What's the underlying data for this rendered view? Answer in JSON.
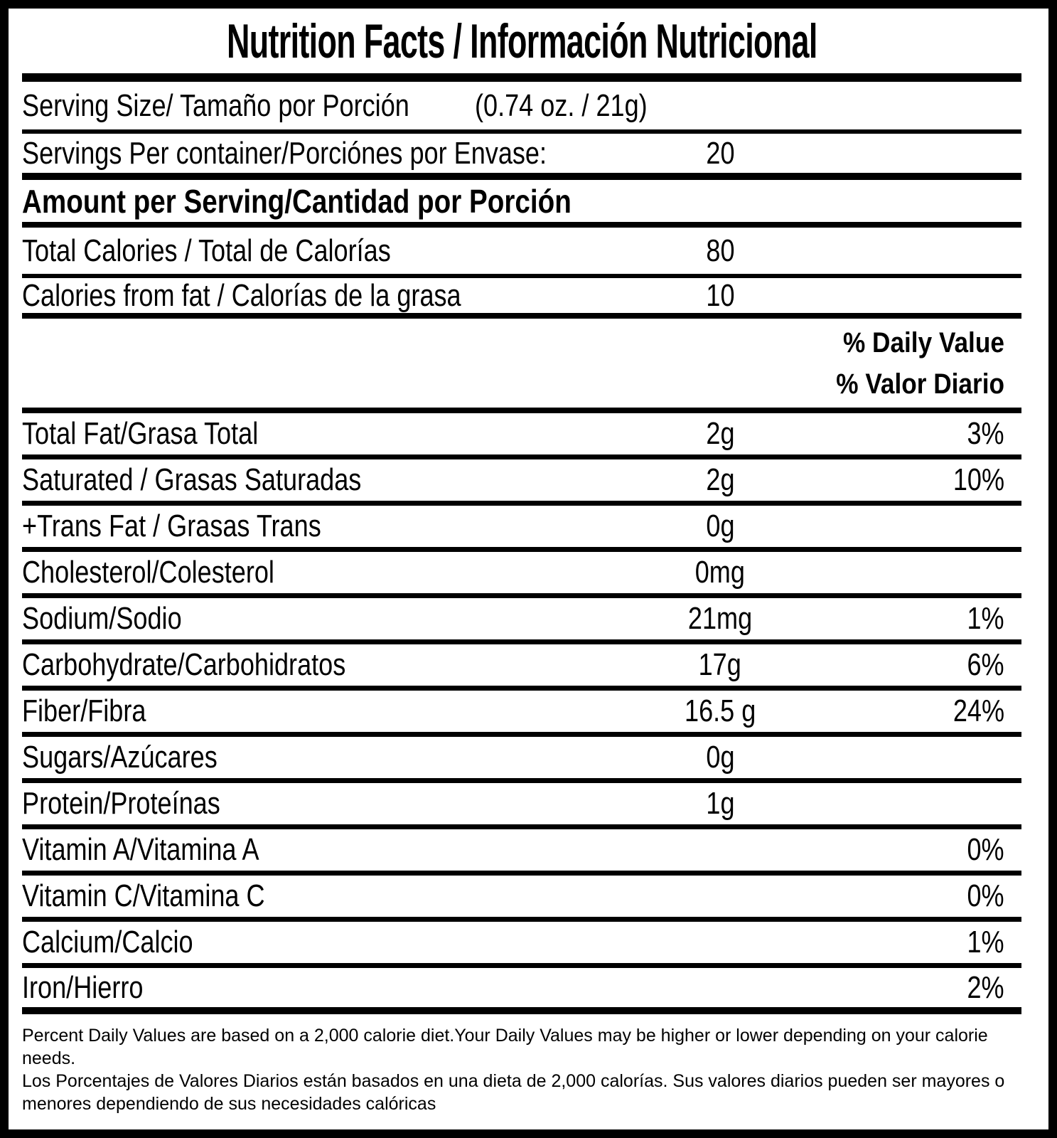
{
  "label": {
    "title": "Nutrition Facts / Información Nutricional",
    "serving": {
      "size_label": "Serving Size/ Tamaño por Porción",
      "size_value": "(0.74 oz. / 21g)",
      "per_container_label": "Servings Per container/Porciónes por Envase:",
      "per_container_value": "20"
    },
    "amount_heading": "Amount per Serving/Cantidad por Porción",
    "calories": [
      {
        "label": "Total Calories / Total de Calorías",
        "amount": "80"
      },
      {
        "label": "Calories from fat / Calorías de la grasa",
        "amount": "10"
      }
    ],
    "dv_header": {
      "line1": "% Daily Value",
      "line2": "% Valor Diario"
    },
    "nutrients": [
      {
        "label": "Total Fat/Grasa Total",
        "amount": "2g",
        "dv": "3%"
      },
      {
        "label": "Saturated / Grasas Saturadas",
        "amount": "2g",
        "dv": "10%"
      },
      {
        "label": "+Trans Fat / Grasas Trans",
        "amount": "0g",
        "dv": ""
      },
      {
        "label": "Cholesterol/Colesterol",
        "amount": "0mg",
        "dv": ""
      },
      {
        "label": "Sodium/Sodio",
        "amount": "21mg",
        "dv": "1%"
      },
      {
        "label": "Carbohydrate/Carbohidratos",
        "amount": "17g",
        "dv": "6%"
      },
      {
        "label": "Fiber/Fibra",
        "amount": "16.5 g",
        "dv": "24%"
      },
      {
        "label": "Sugars/Azúcares",
        "amount": "0g",
        "dv": ""
      },
      {
        "label": "Protein/Proteínas",
        "amount": "1g",
        "dv": ""
      },
      {
        "label": "Vitamin A/Vitamina A",
        "amount": "",
        "dv": "0%"
      },
      {
        "label": "Vitamin C/Vitamina C",
        "amount": "",
        "dv": "0%"
      },
      {
        "label": "Calcium/Calcio",
        "amount": "",
        "dv": "1%"
      },
      {
        "label": "Iron/Hierro",
        "amount": "",
        "dv": "2%"
      }
    ],
    "footnote_en": "Percent Daily Values are based on a 2,000 calorie diet.Your Daily Values may be higher or lower depending on your calorie needs.",
    "footnote_es": "Los Porcentajes de Valores Diarios están basados en una dieta de 2,000 calorías. Sus valores diarios pueden ser mayores o menores dependiendo de sus necesidades calóricas"
  },
  "colors": {
    "ink": "#000000",
    "background": "#ffffff"
  }
}
